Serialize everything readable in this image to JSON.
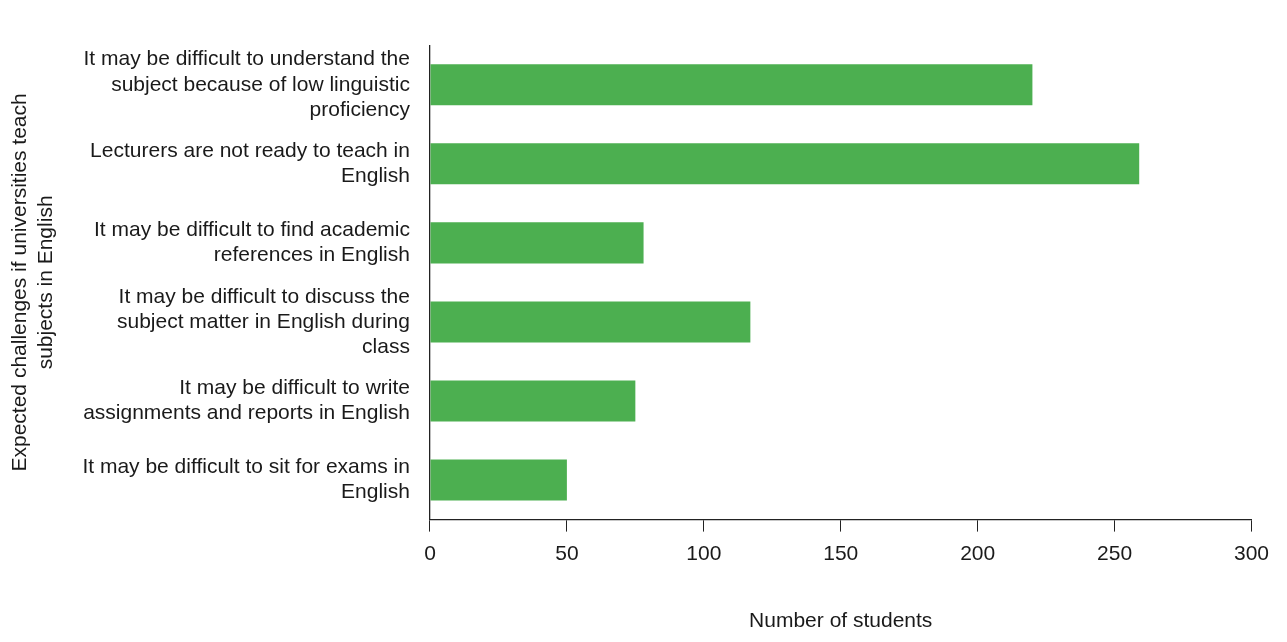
{
  "chart_data": {
    "type": "bar",
    "orientation": "horizontal",
    "xlabel": "Number of students",
    "ylabel": "Expected challenges if universities teach subjects in English",
    "categories": [
      "It may be difficult to understand the subject because of low linguistic proficiency",
      "Lecturers are not ready to teach in English",
      "It may be difficult to find academic references in English",
      "It may be difficult to discuss the subject matter in English during class",
      "It may be difficult to write assignments and reports in English",
      "It may be difficult to sit for exams in English"
    ],
    "values": [
      220,
      259,
      78,
      117,
      75,
      50
    ],
    "color": "#4caf50",
    "xlim": [
      0,
      300
    ],
    "xticks": [
      0,
      50,
      100,
      150,
      200,
      250,
      300
    ],
    "grid": false,
    "legend": false
  }
}
